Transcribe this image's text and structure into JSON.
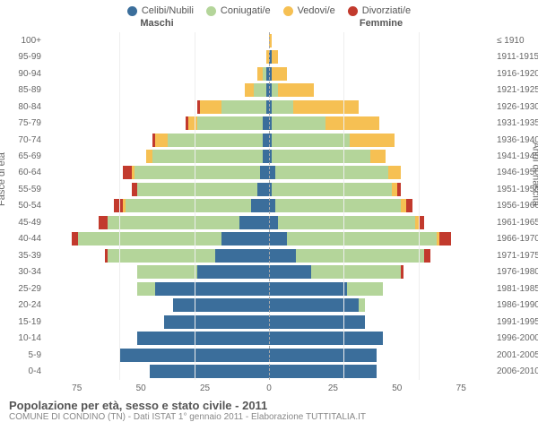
{
  "colors": {
    "celibi": "#3b6e9b",
    "coniugati": "#b4d59a",
    "vedovi": "#f6c053",
    "divorziati": "#c23a2d",
    "grid": "#eeeeee",
    "centerline": "#aaaaaa",
    "text": "#666666",
    "bg": "#ffffff"
  },
  "legend": [
    {
      "key": "celibi",
      "label": "Celibi/Nubili"
    },
    {
      "key": "coniugati",
      "label": "Coniugati/e"
    },
    {
      "key": "vedovi",
      "label": "Vedovi/e"
    },
    {
      "key": "divorziati",
      "label": "Divorziati/e"
    }
  ],
  "headers": {
    "male": "Maschi",
    "female": "Femmine"
  },
  "ylabel_left": "Fasce di età",
  "ylabel_right": "Anni di nascita",
  "xmax": 75,
  "xticks_left": [
    75,
    50,
    25,
    0
  ],
  "xticks_right": [
    0,
    25,
    50,
    75
  ],
  "title": "Popolazione per età, sesso e stato civile - 2011",
  "subtitle": "COMUNE DI CONDINO (TN) - Dati ISTAT 1° gennaio 2011 - Elaborazione TUTTITALIA.IT",
  "age_groups": [
    "100+",
    "95-99",
    "90-94",
    "85-89",
    "80-84",
    "75-79",
    "70-74",
    "65-69",
    "60-64",
    "55-59",
    "50-54",
    "45-49",
    "40-44",
    "35-39",
    "30-34",
    "25-29",
    "20-24",
    "15-19",
    "10-14",
    "5-9",
    "0-4"
  ],
  "birth_years": [
    "≤ 1910",
    "1911-1915",
    "1916-1920",
    "1921-1925",
    "1926-1930",
    "1931-1935",
    "1936-1940",
    "1941-1945",
    "1946-1950",
    "1951-1955",
    "1956-1960",
    "1961-1965",
    "1966-1970",
    "1971-1975",
    "1976-1980",
    "1981-1985",
    "1986-1990",
    "1991-1995",
    "1996-2000",
    "2001-2005",
    "2006-2010"
  ],
  "data": {
    "male": [
      {
        "celibi": 0,
        "coniugati": 0,
        "vedovi": 0,
        "divorziati": 0
      },
      {
        "celibi": 0,
        "coniugati": 0,
        "vedovi": 1,
        "divorziati": 0
      },
      {
        "celibi": 1,
        "coniugati": 1,
        "vedovi": 2,
        "divorziati": 0
      },
      {
        "celibi": 1,
        "coniugati": 4,
        "vedovi": 3,
        "divorziati": 0
      },
      {
        "celibi": 1,
        "coniugati": 15,
        "vedovi": 7,
        "divorziati": 1
      },
      {
        "celibi": 2,
        "coniugati": 22,
        "vedovi": 3,
        "divorziati": 1
      },
      {
        "celibi": 2,
        "coniugati": 32,
        "vedovi": 4,
        "divorziati": 1
      },
      {
        "celibi": 2,
        "coniugati": 37,
        "vedovi": 2,
        "divorziati": 0
      },
      {
        "celibi": 3,
        "coniugati": 42,
        "vedovi": 1,
        "divorziati": 3
      },
      {
        "celibi": 4,
        "coniugati": 40,
        "vedovi": 0,
        "divorziati": 2
      },
      {
        "celibi": 6,
        "coniugati": 42,
        "vedovi": 1,
        "divorziati": 3
      },
      {
        "celibi": 10,
        "coniugati": 44,
        "vedovi": 0,
        "divorziati": 3
      },
      {
        "celibi": 16,
        "coniugati": 48,
        "vedovi": 0,
        "divorziati": 2
      },
      {
        "celibi": 18,
        "coniugati": 36,
        "vedovi": 0,
        "divorziati": 1
      },
      {
        "celibi": 24,
        "coniugati": 20,
        "vedovi": 0,
        "divorziati": 0
      },
      {
        "celibi": 38,
        "coniugati": 6,
        "vedovi": 0,
        "divorziati": 0
      },
      {
        "celibi": 32,
        "coniugati": 0,
        "vedovi": 0,
        "divorziati": 0
      },
      {
        "celibi": 35,
        "coniugati": 0,
        "vedovi": 0,
        "divorziati": 0
      },
      {
        "celibi": 44,
        "coniugati": 0,
        "vedovi": 0,
        "divorziati": 0
      },
      {
        "celibi": 50,
        "coniugati": 0,
        "vedovi": 0,
        "divorziati": 0
      },
      {
        "celibi": 40,
        "coniugati": 0,
        "vedovi": 0,
        "divorziati": 0
      }
    ],
    "female": [
      {
        "celibi": 0,
        "coniugati": 0,
        "vedovi": 1,
        "divorziati": 0
      },
      {
        "celibi": 1,
        "coniugati": 0,
        "vedovi": 2,
        "divorziati": 0
      },
      {
        "celibi": 1,
        "coniugati": 0,
        "vedovi": 5,
        "divorziati": 0
      },
      {
        "celibi": 1,
        "coniugati": 2,
        "vedovi": 12,
        "divorziati": 0
      },
      {
        "celibi": 1,
        "coniugati": 7,
        "vedovi": 22,
        "divorziati": 0
      },
      {
        "celibi": 1,
        "coniugati": 18,
        "vedovi": 18,
        "divorziati": 0
      },
      {
        "celibi": 1,
        "coniugati": 26,
        "vedovi": 15,
        "divorziati": 0
      },
      {
        "celibi": 1,
        "coniugati": 33,
        "vedovi": 5,
        "divorziati": 0
      },
      {
        "celibi": 2,
        "coniugati": 38,
        "vedovi": 4,
        "divorziati": 0
      },
      {
        "celibi": 1,
        "coniugati": 40,
        "vedovi": 2,
        "divorziati": 1
      },
      {
        "celibi": 2,
        "coniugati": 42,
        "vedovi": 2,
        "divorziati": 2
      },
      {
        "celibi": 3,
        "coniugati": 46,
        "vedovi": 1,
        "divorziati": 2
      },
      {
        "celibi": 6,
        "coniugati": 50,
        "vedovi": 1,
        "divorziati": 4
      },
      {
        "celibi": 9,
        "coniugati": 43,
        "vedovi": 0,
        "divorziati": 2
      },
      {
        "celibi": 14,
        "coniugati": 30,
        "vedovi": 0,
        "divorziati": 1
      },
      {
        "celibi": 26,
        "coniugati": 12,
        "vedovi": 0,
        "divorziati": 0
      },
      {
        "celibi": 30,
        "coniugati": 2,
        "vedovi": 0,
        "divorziati": 0
      },
      {
        "celibi": 32,
        "coniugati": 0,
        "vedovi": 0,
        "divorziati": 0
      },
      {
        "celibi": 38,
        "coniugati": 0,
        "vedovi": 0,
        "divorziati": 0
      },
      {
        "celibi": 36,
        "coniugati": 0,
        "vedovi": 0,
        "divorziati": 0
      },
      {
        "celibi": 36,
        "coniugati": 0,
        "vedovi": 0,
        "divorziati": 0
      }
    ]
  }
}
